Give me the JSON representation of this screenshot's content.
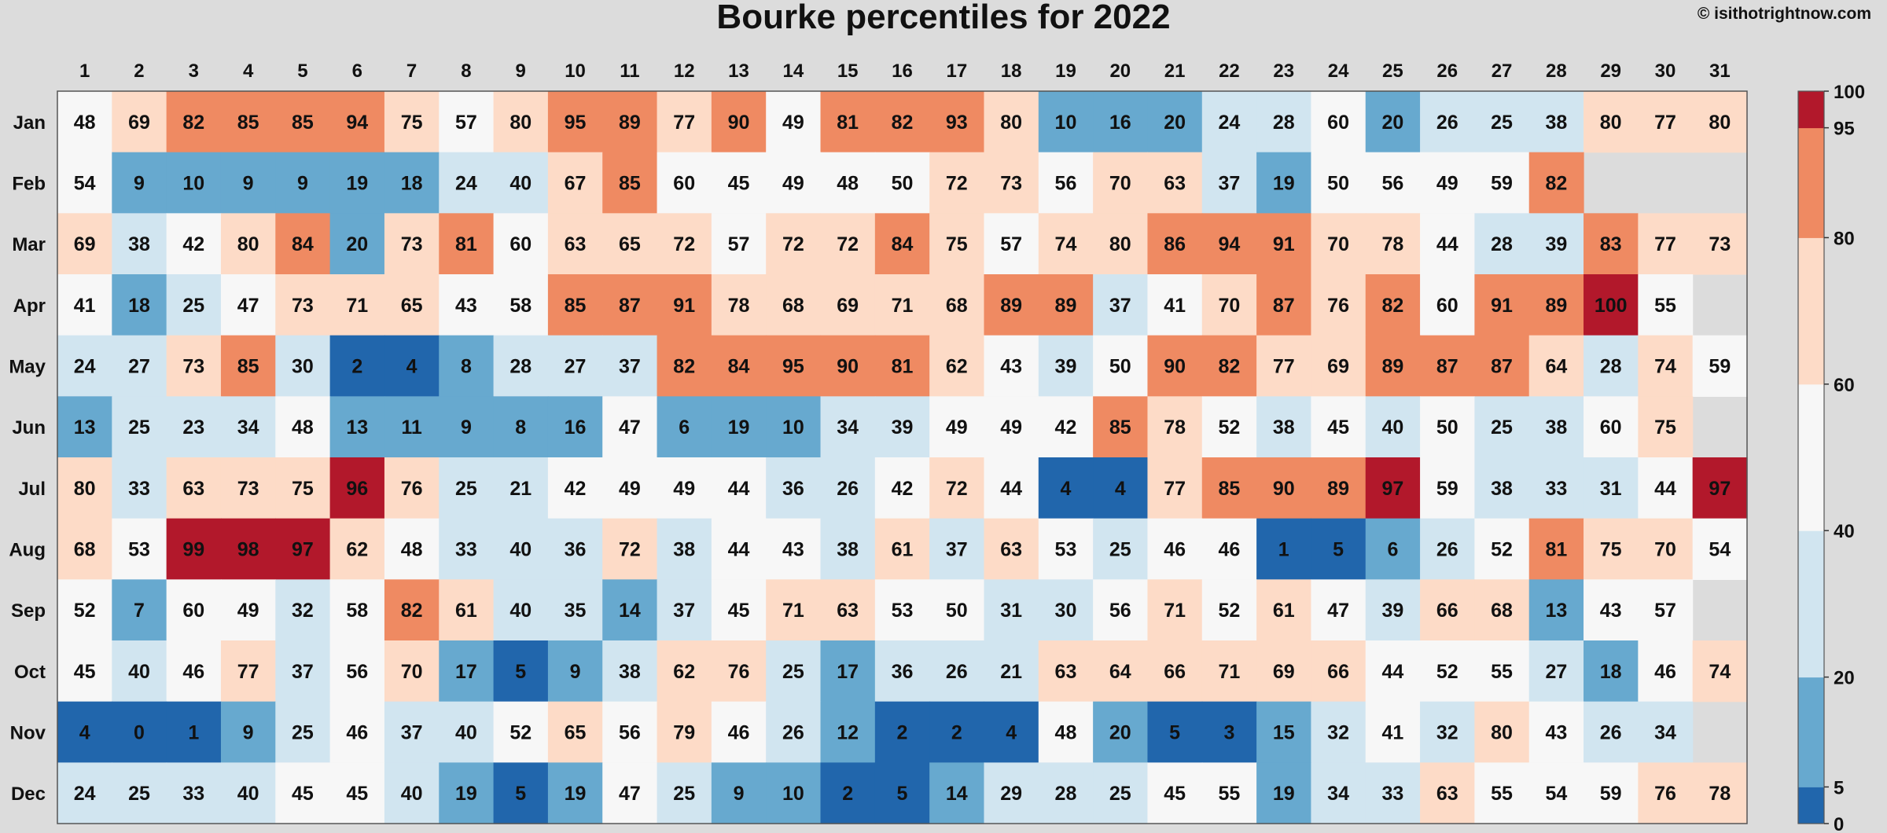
{
  "title": "Bourke percentiles for 2022",
  "credit": "© isithotrightnow.com",
  "chart_data": {
    "type": "heatmap",
    "title": "Bourke percentiles for 2022",
    "x": [
      1,
      2,
      3,
      4,
      5,
      6,
      7,
      8,
      9,
      10,
      11,
      12,
      13,
      14,
      15,
      16,
      17,
      18,
      19,
      20,
      21,
      22,
      23,
      24,
      25,
      26,
      27,
      28,
      29,
      30,
      31
    ],
    "y": [
      "Jan",
      "Feb",
      "Mar",
      "Apr",
      "May",
      "Jun",
      "Jul",
      "Aug",
      "Sep",
      "Oct",
      "Nov",
      "Dec"
    ],
    "values": [
      [
        48,
        69,
        82,
        85,
        85,
        94,
        75,
        57,
        80,
        95,
        89,
        77,
        90,
        49,
        81,
        82,
        93,
        80,
        10,
        16,
        20,
        24,
        28,
        60,
        20,
        26,
        25,
        38,
        80,
        77,
        80
      ],
      [
        54,
        9,
        10,
        9,
        9,
        19,
        18,
        24,
        40,
        67,
        85,
        60,
        45,
        49,
        48,
        50,
        72,
        73,
        56,
        70,
        63,
        37,
        19,
        50,
        56,
        49,
        59,
        82,
        null,
        null,
        null
      ],
      [
        69,
        38,
        42,
        80,
        84,
        20,
        73,
        81,
        60,
        63,
        65,
        72,
        57,
        72,
        72,
        84,
        75,
        57,
        74,
        80,
        86,
        94,
        91,
        70,
        78,
        44,
        28,
        39,
        83,
        77,
        73
      ],
      [
        41,
        18,
        25,
        47,
        73,
        71,
        65,
        43,
        58,
        85,
        87,
        91,
        78,
        68,
        69,
        71,
        68,
        89,
        89,
        37,
        41,
        70,
        87,
        76,
        82,
        60,
        91,
        89,
        100,
        55,
        null
      ],
      [
        24,
        27,
        73,
        85,
        30,
        2,
        4,
        8,
        28,
        27,
        37,
        82,
        84,
        95,
        90,
        81,
        62,
        43,
        39,
        50,
        90,
        82,
        77,
        69,
        89,
        87,
        87,
        64,
        28,
        74,
        59
      ],
      [
        13,
        25,
        23,
        34,
        48,
        13,
        11,
        9,
        8,
        16,
        47,
        6,
        19,
        10,
        34,
        39,
        49,
        49,
        42,
        85,
        78,
        52,
        38,
        45,
        40,
        50,
        25,
        38,
        60,
        75,
        null
      ],
      [
        80,
        33,
        63,
        73,
        75,
        96,
        76,
        25,
        21,
        42,
        49,
        49,
        44,
        36,
        26,
        42,
        72,
        44,
        4,
        4,
        77,
        85,
        90,
        89,
        97,
        59,
        38,
        33,
        31,
        44,
        97
      ],
      [
        68,
        53,
        99,
        98,
        97,
        62,
        48,
        33,
        40,
        36,
        72,
        38,
        44,
        43,
        38,
        61,
        37,
        63,
        53,
        25,
        46,
        46,
        1,
        5,
        6,
        26,
        52,
        81,
        75,
        70,
        54
      ],
      [
        52,
        7,
        60,
        49,
        32,
        58,
        82,
        61,
        40,
        35,
        14,
        37,
        45,
        71,
        63,
        53,
        50,
        31,
        30,
        56,
        71,
        52,
        61,
        47,
        39,
        66,
        68,
        13,
        43,
        57,
        null
      ],
      [
        45,
        40,
        46,
        77,
        37,
        56,
        70,
        17,
        5,
        9,
        38,
        62,
        76,
        25,
        17,
        36,
        26,
        21,
        63,
        64,
        66,
        71,
        69,
        66,
        44,
        52,
        55,
        27,
        18,
        46,
        74
      ],
      [
        4,
        0,
        1,
        9,
        25,
        46,
        37,
        40,
        52,
        65,
        56,
        79,
        46,
        26,
        12,
        2,
        2,
        4,
        48,
        20,
        5,
        3,
        15,
        32,
        41,
        32,
        80,
        43,
        26,
        34,
        null
      ],
      [
        24,
        25,
        33,
        40,
        45,
        45,
        40,
        19,
        5,
        19,
        47,
        25,
        9,
        10,
        2,
        5,
        14,
        29,
        28,
        25,
        45,
        55,
        19,
        34,
        33,
        63,
        55,
        54,
        59,
        76,
        78
      ]
    ],
    "colorbar": {
      "ticks": [
        0,
        5,
        20,
        40,
        60,
        80,
        95,
        100
      ],
      "bins": [
        {
          "min": 0,
          "max": 5,
          "color": "#2166ac"
        },
        {
          "min": 5,
          "max": 20,
          "color": "#67a9cf"
        },
        {
          "min": 20,
          "max": 40,
          "color": "#d1e5f0"
        },
        {
          "min": 40,
          "max": 60,
          "color": "#f7f7f7"
        },
        {
          "min": 60,
          "max": 80,
          "color": "#fddbc7"
        },
        {
          "min": 80,
          "max": 95,
          "color": "#ef8a62"
        },
        {
          "min": 95,
          "max": 100,
          "color": "#b2182b"
        }
      ]
    },
    "missing_color": "#dcdcdc"
  }
}
